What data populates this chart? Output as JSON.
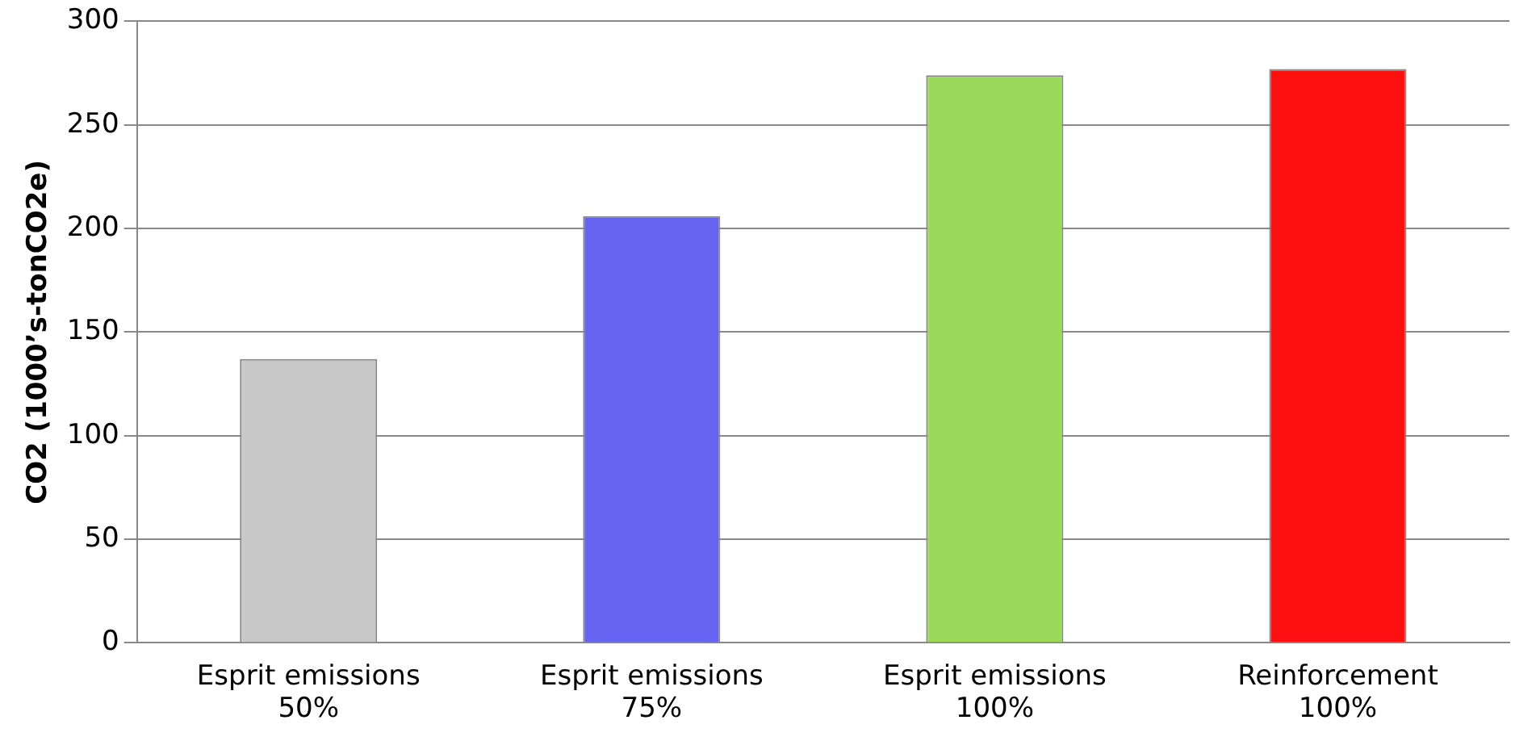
{
  "chart_data": {
    "type": "bar",
    "ylabel": "CO2 (1000’s-tonCO2e)",
    "categories": [
      "Esprit emissions\n50%",
      "Esprit emissions\n75%",
      "Esprit emissions\n100%",
      "Reinforcement\n100%"
    ],
    "values": [
      137,
      206,
      274,
      277
    ],
    "colors": [
      "#c8c8c8",
      "#6464f0",
      "#9ad95a",
      "#ff1010"
    ],
    "ylim": [
      0,
      300
    ],
    "yticks": [
      0,
      50,
      100,
      150,
      200,
      250,
      300
    ],
    "grid": "y",
    "legend": false
  }
}
